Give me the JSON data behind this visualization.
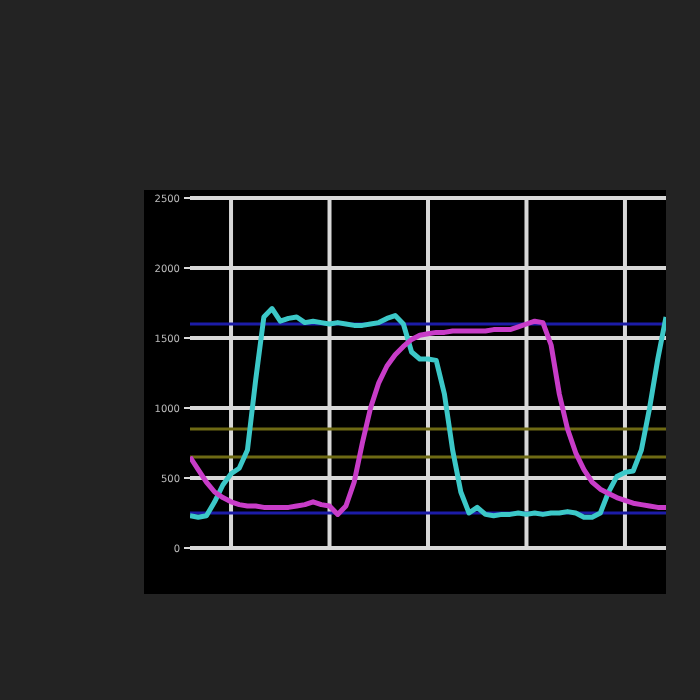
{
  "chart_data": {
    "type": "line",
    "categories": [
      null,
      null,
      null,
      null,
      null,
      null,
      null,
      null,
      null,
      null,
      null,
      null,
      null,
      null,
      null,
      null,
      null,
      null,
      null,
      null,
      null,
      null,
      null,
      null,
      null,
      null,
      null,
      null,
      null,
      null,
      null,
      null,
      null,
      null,
      null,
      null,
      null,
      null,
      null,
      null,
      null,
      null,
      null,
      null,
      null,
      null,
      null,
      null,
      null,
      null,
      null,
      null,
      null,
      null,
      null,
      null,
      null,
      null,
      null
    ],
    "series": [
      {
        "color": "#3cc8c8",
        "values": [
          230,
          220,
          230,
          330,
          450,
          530,
          570,
          700,
          1200,
          1650,
          1710,
          1620,
          1640,
          1650,
          1610,
          1620,
          1610,
          1600,
          1610,
          1600,
          1590,
          1590,
          1600,
          1610,
          1640,
          1660,
          1600,
          1400,
          1350,
          1350,
          1340,
          1100,
          700,
          400,
          250,
          290,
          240,
          230,
          240,
          240,
          250,
          240,
          250,
          240,
          250,
          250,
          260,
          250,
          220,
          220,
          250,
          400,
          510,
          540,
          550,
          700,
          1000,
          1350,
          1650
        ]
      },
      {
        "color": "#c83cc8",
        "values": [
          650,
          560,
          470,
          400,
          360,
          330,
          310,
          300,
          300,
          290,
          290,
          290,
          290,
          300,
          310,
          330,
          310,
          300,
          240,
          300,
          470,
          750,
          1000,
          1180,
          1300,
          1380,
          1440,
          1490,
          1520,
          1530,
          1540,
          1540,
          1550,
          1550,
          1550,
          1550,
          1550,
          1560,
          1560,
          1560,
          1580,
          1600,
          1620,
          1610,
          1450,
          1100,
          850,
          680,
          560,
          470,
          420,
          390,
          360,
          340,
          320,
          310,
          300,
          290,
          290
        ]
      }
    ],
    "ylim": [
      0,
      2500
    ],
    "yticks": [
      0,
      500,
      1000,
      1500,
      2000,
      2500
    ],
    "grid": true,
    "marker": "none",
    "ref_lines": [
      {
        "axis": "y",
        "value": 1600,
        "color": "#1c1ca8"
      },
      {
        "axis": "y",
        "value": 250,
        "color": "#1c1ca8"
      },
      {
        "axis": "y",
        "value": 850,
        "color": "#6e6a14"
      },
      {
        "axis": "y",
        "value": 650,
        "color": "#6e6a14"
      }
    ]
  }
}
